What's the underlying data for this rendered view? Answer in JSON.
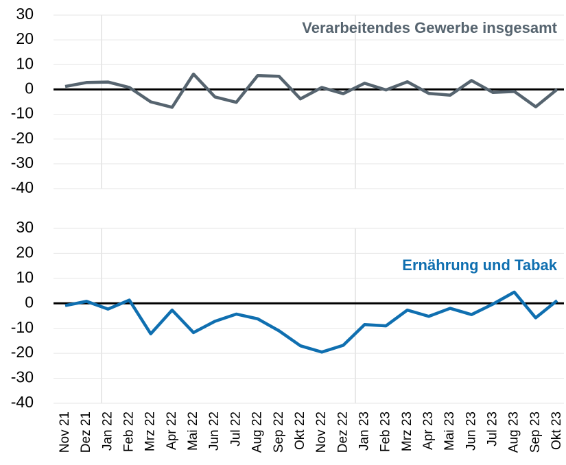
{
  "chart_data": [
    {
      "type": "line",
      "title": "Verarbeitendes Gewerbe insgesamt",
      "series": [
        {
          "name": "Verarbeitendes Gewerbe insgesamt",
          "color": "#56646f",
          "values": [
            1.2,
            2.8,
            3,
            0.8,
            -5,
            -7.2,
            6.2,
            -3,
            -5.2,
            5.6,
            5.3,
            -3.8,
            0.8,
            -1.7,
            2.5,
            -0.2,
            3.1,
            -1.6,
            -2.3,
            3.6,
            -1.2,
            -0.8,
            -7,
            0
          ]
        }
      ],
      "ylim": [
        -40,
        30
      ],
      "yticks": [
        -40,
        -30,
        -20,
        -10,
        0,
        10,
        20,
        30
      ],
      "grid": true
    },
    {
      "type": "line",
      "title": "Ernährung und Tabak",
      "categories": [
        "Nov 21",
        "Dez 21",
        "Jan 22",
        "Feb 22",
        "Mrz 22",
        "Apr 22",
        "Mai 22",
        "Jun 22",
        "Jul 22",
        "Aug 22",
        "Sep 22",
        "Okt 22",
        "Nov 22",
        "Dez 22",
        "Jan 23",
        "Feb 23",
        "Mrz 23",
        "Apr 23",
        "Mai 23",
        "Jun 23",
        "Jul 23",
        "Aug 23",
        "Sep 23",
        "Okt 23"
      ],
      "series": [
        {
          "name": "Ernährung und Tabak",
          "color": "#0f6fb0",
          "values": [
            -0.9,
            0.8,
            -2.3,
            1.3,
            -12.2,
            -2.7,
            -11.7,
            -7.2,
            -4.3,
            -6.2,
            -11,
            -17,
            -19.5,
            -16.8,
            -8.5,
            -9,
            -2.7,
            -5.2,
            -2,
            -4.5,
            -0.3,
            4.5,
            -5.8,
            1.1
          ]
        }
      ],
      "ylim": [
        -40,
        30
      ],
      "yticks": [
        -40,
        -30,
        -20,
        -10,
        0,
        10,
        20,
        30
      ],
      "grid": true
    }
  ]
}
